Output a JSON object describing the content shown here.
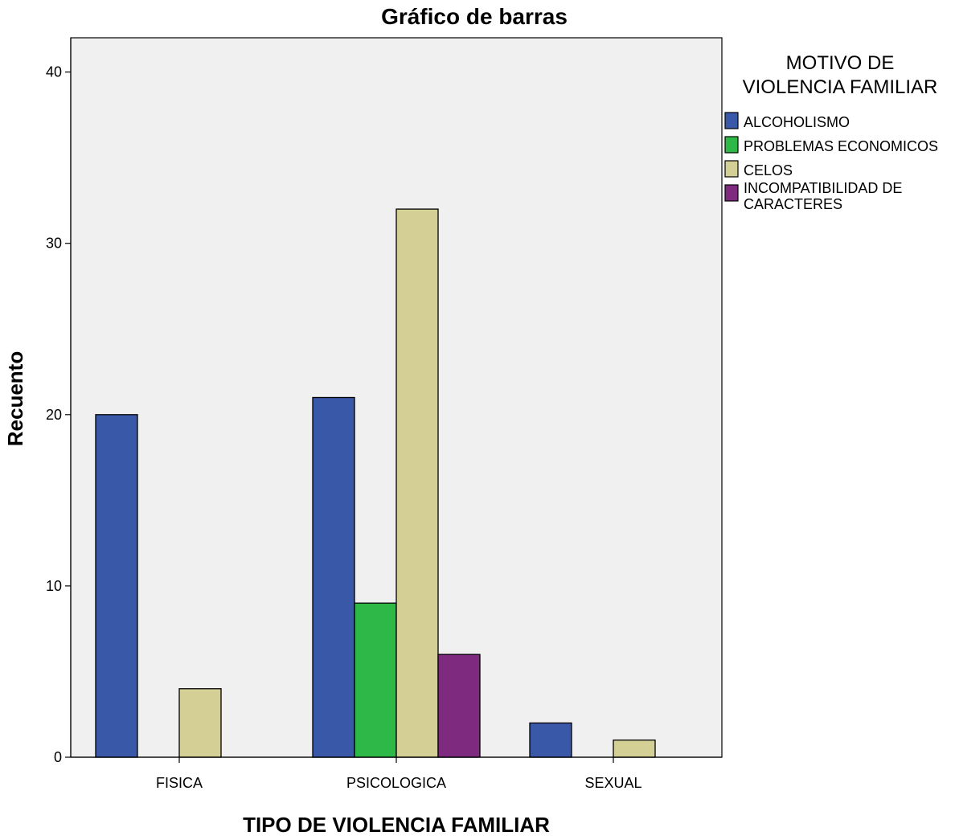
{
  "chart_data": {
    "type": "bar",
    "title": "Gráfico de barras",
    "xlabel": "TIPO DE VIOLENCIA FAMILIAR",
    "ylabel": "Recuento",
    "categories": [
      "FISICA",
      "PSICOLOGICA",
      "SEXUAL"
    ],
    "ylim": [
      0,
      42
    ],
    "yticks": [
      0,
      10,
      20,
      30,
      40
    ],
    "grid": false,
    "legend": {
      "title_lines": [
        "MOTIVO DE",
        "VIOLENCIA FAMILIAR"
      ],
      "placement": "right"
    },
    "series": [
      {
        "name_lines": [
          "ALCOHOLISMO"
        ],
        "color": "#3a58a8",
        "values": [
          20,
          21,
          2
        ]
      },
      {
        "name_lines": [
          "PROBLEMAS ECONOMICOS"
        ],
        "color": "#2db848",
        "values": [
          0,
          9,
          0
        ]
      },
      {
        "name_lines": [
          "CELOS"
        ],
        "color": "#d4cf94",
        "values": [
          4,
          32,
          1
        ]
      },
      {
        "name_lines": [
          "INCOMPATIBILIDAD DE",
          "CARACTERES"
        ],
        "color": "#7d2a7f",
        "values": [
          0,
          6,
          0
        ]
      }
    ],
    "plot_background": "#f0f0f0"
  }
}
